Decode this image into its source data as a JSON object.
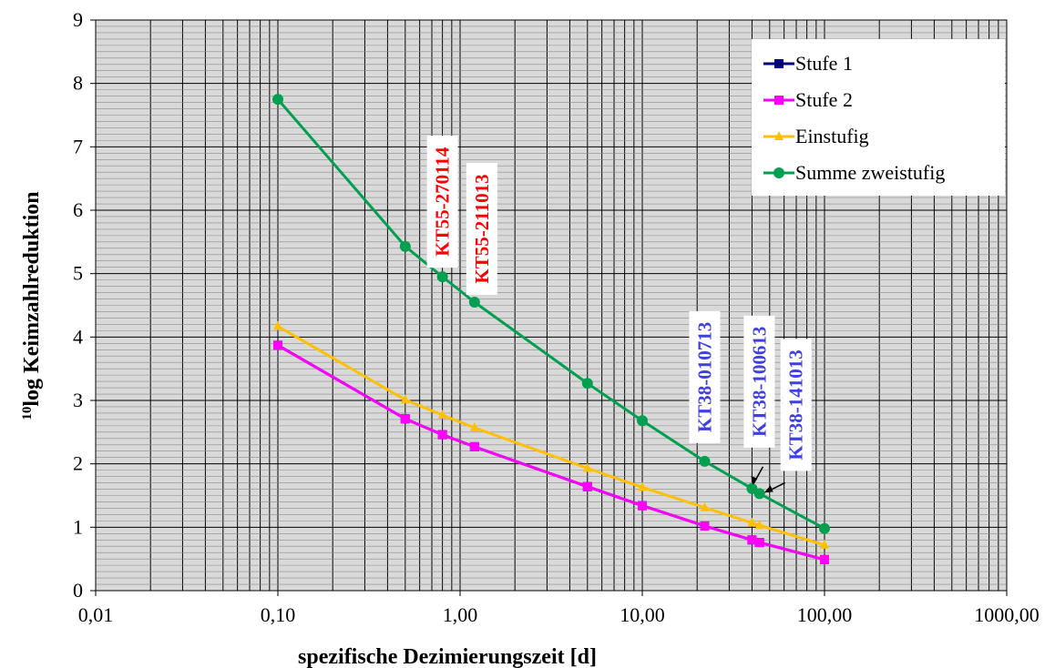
{
  "chart_data": {
    "type": "line",
    "xscale": "log",
    "xlim": [
      0.01,
      1000
    ],
    "ylim": [
      0,
      9
    ],
    "grid": true,
    "background": "#d9d9d9",
    "xlabel": "spezifische Dezimierungszeit [d]",
    "ylabel_sup": "10",
    "ylabel": "log Keimzahlreduktion",
    "xtick_values": [
      0.01,
      0.1,
      1,
      10,
      100,
      1000
    ],
    "xtick_labels": [
      "0,01",
      "0,10",
      "1,00",
      "10,00",
      "100,00",
      "1000,00"
    ],
    "ytick_values": [
      0,
      1,
      2,
      3,
      4,
      5,
      6,
      7,
      8,
      9
    ],
    "ytick_labels": [
      "0",
      "1",
      "2",
      "3",
      "4",
      "5",
      "6",
      "7",
      "8",
      "9"
    ],
    "legend_position": "top-right",
    "series": [
      {
        "name": "Stufe 1",
        "color": "#000080",
        "marker": "square",
        "x": [
          0.1,
          0.5,
          0.8,
          1.2,
          5,
          10,
          22,
          40,
          44,
          100
        ],
        "y": [
          3.87,
          2.71,
          2.46,
          2.27,
          1.64,
          1.34,
          1.02,
          0.8,
          0.76,
          0.49
        ]
      },
      {
        "name": "Stufe 2",
        "color": "#ff00ff",
        "marker": "square",
        "x": [
          0.1,
          0.5,
          0.8,
          1.2,
          5,
          10,
          22,
          40,
          44,
          100
        ],
        "y": [
          3.87,
          2.71,
          2.46,
          2.27,
          1.64,
          1.34,
          1.02,
          0.8,
          0.76,
          0.49
        ]
      },
      {
        "name": "Einstufig",
        "color": "#ffc000",
        "marker": "triangle",
        "x": [
          0.1,
          0.5,
          0.8,
          1.2,
          5,
          10,
          22,
          40,
          44,
          100
        ],
        "y": [
          4.17,
          3.01,
          2.77,
          2.57,
          1.93,
          1.63,
          1.31,
          1.07,
          1.03,
          0.72
        ]
      },
      {
        "name": "Summe zweistufig",
        "color": "#00a050",
        "marker": "circle",
        "x": [
          0.1,
          0.5,
          0.8,
          1.2,
          5,
          10,
          22,
          40,
          44,
          100
        ],
        "y": [
          7.75,
          5.43,
          4.95,
          4.55,
          3.27,
          2.68,
          2.04,
          1.61,
          1.53,
          0.98
        ]
      }
    ],
    "annotations": [
      {
        "text": "KT55-270114",
        "color": "#ff0000"
      },
      {
        "text": "KT55-211013",
        "color": "#ff0000"
      },
      {
        "text": "KT38-010713",
        "color": "#4040e0"
      },
      {
        "text": "KT38-100613",
        "color": "#4040e0"
      },
      {
        "text": "KT38-141013",
        "color": "#4040e0"
      }
    ]
  }
}
